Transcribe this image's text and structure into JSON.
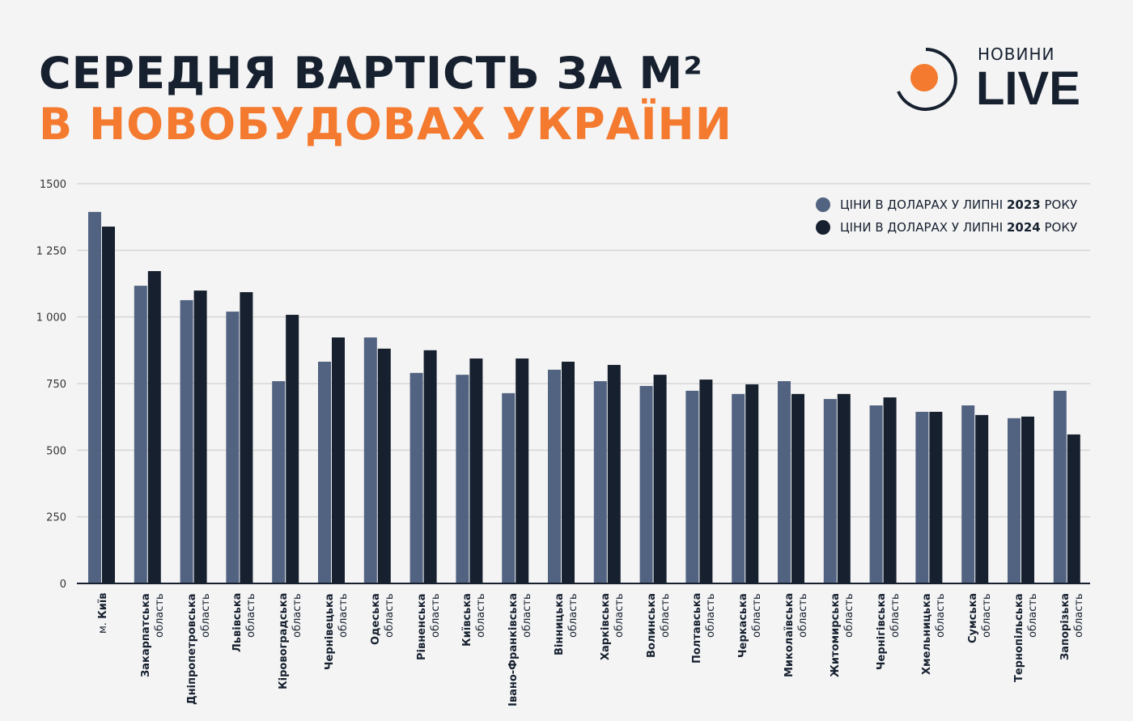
{
  "header": {
    "title_line1": "СЕРЕДНЯ ВАРТІСТЬ ЗА М²",
    "title_line2": "В НОВОБУДОВАХ УКРАЇНИ"
  },
  "logo": {
    "top": "НОВИНИ",
    "main": "LIVE"
  },
  "colors": {
    "series_2023": "#526381",
    "series_2024": "#16202f",
    "accent": "#f47a2f",
    "grid": "#d6d6d6"
  },
  "chart_data": {
    "type": "bar",
    "ylim": [
      0,
      1500
    ],
    "yticks": [
      "0",
      "250",
      "500",
      "750",
      "1 000",
      "1 250",
      "1500"
    ],
    "ytick_values": [
      0,
      250,
      500,
      750,
      1000,
      1250,
      1500
    ],
    "grid": true,
    "legend_position": "top-right",
    "legend": [
      {
        "prefix": "ЦІНИ В ДОЛАРАХ У ЛИПНІ ",
        "year": "2023",
        "suffix": " РОКУ"
      },
      {
        "prefix": "ЦІНИ В ДОЛАРАХ У ЛИПНІ ",
        "year": "2024",
        "suffix": " РОКУ"
      }
    ],
    "categories": [
      {
        "pre": "м. ",
        "name": "Київ",
        "sub": ""
      },
      {
        "pre": "",
        "name": "Закарпатська",
        "sub": "область"
      },
      {
        "pre": "",
        "name": "Дніпропетровська",
        "sub": "область"
      },
      {
        "pre": "",
        "name": "Львівська",
        "sub": "область"
      },
      {
        "pre": "",
        "name": "Кіровоградська",
        "sub": "область"
      },
      {
        "pre": "",
        "name": "Чернівецька",
        "sub": "область"
      },
      {
        "pre": "",
        "name": "Одеська",
        "sub": "область"
      },
      {
        "pre": "",
        "name": "Рівненська",
        "sub": "область"
      },
      {
        "pre": "",
        "name": "Київська",
        "sub": "область"
      },
      {
        "pre": "",
        "name": "Івано-Франківська",
        "sub": "область"
      },
      {
        "pre": "",
        "name": "Вінницька",
        "sub": "область"
      },
      {
        "pre": "",
        "name": "Харківська",
        "sub": "область"
      },
      {
        "pre": "",
        "name": "Волинська",
        "sub": "область"
      },
      {
        "pre": "",
        "name": "Полтавська",
        "sub": "область"
      },
      {
        "pre": "",
        "name": "Черкаська",
        "sub": "область"
      },
      {
        "pre": "",
        "name": "Миколаївська",
        "sub": "область"
      },
      {
        "pre": "",
        "name": "Житомирська",
        "sub": "область"
      },
      {
        "pre": "",
        "name": "Чернігівська",
        "sub": "область"
      },
      {
        "pre": "",
        "name": "Хмельницька",
        "sub": "область"
      },
      {
        "pre": "",
        "name": "Сумська",
        "sub": "область"
      },
      {
        "pre": "",
        "name": "Тернопільська",
        "sub": "область"
      },
      {
        "pre": "",
        "name": "Запорізька",
        "sub": "область"
      }
    ],
    "series": [
      {
        "name": "2023",
        "values": [
          1394,
          1117,
          1063,
          1020,
          759,
          832,
          923,
          790,
          783,
          714,
          802,
          759,
          741,
          723,
          711,
          759,
          692,
          668,
          644,
          668,
          620,
          723
        ]
      },
      {
        "name": "2024",
        "values": [
          1339,
          1172,
          1099,
          1093,
          1008,
          923,
          881,
          875,
          844,
          844,
          832,
          820,
          783,
          765,
          747,
          711,
          711,
          698,
          644,
          632,
          626,
          559
        ]
      }
    ]
  }
}
